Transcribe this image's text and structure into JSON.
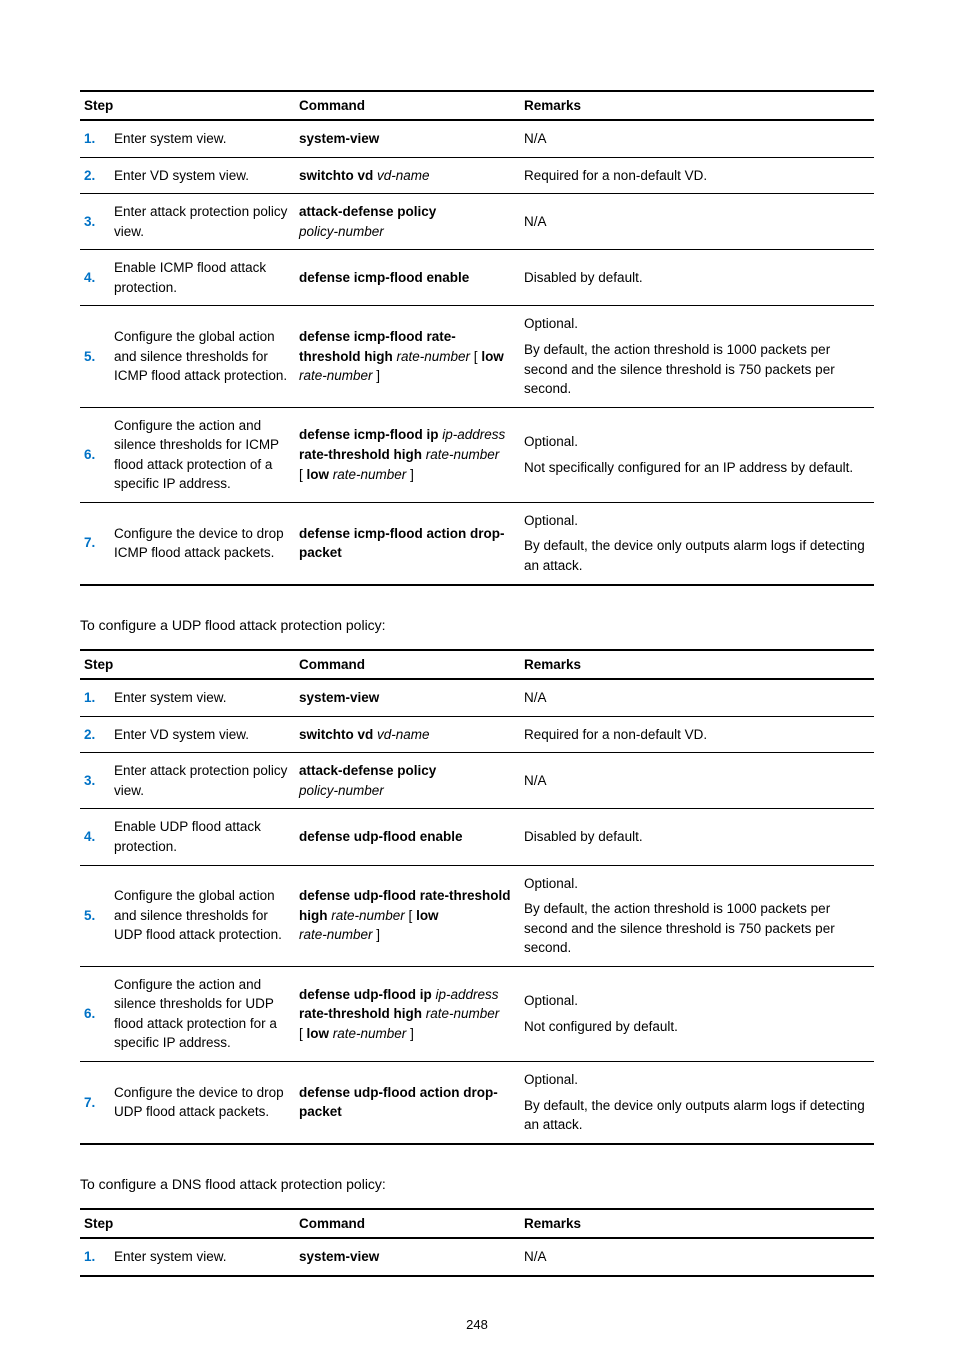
{
  "page_number": "248",
  "headers": {
    "step": "Step",
    "command": "Command",
    "remarks": "Remarks"
  },
  "intro_udp": "To configure a UDP flood attack protection policy:",
  "intro_dns": "To configure a DNS flood attack protection policy:",
  "icmp": [
    {
      "n": "1.",
      "step": "Enter system view.",
      "cmd": [
        {
          "b": "system-view"
        }
      ],
      "rem": "N/A"
    },
    {
      "n": "2.",
      "step": "Enter VD system view.",
      "cmd": [
        {
          "b": "switchto vd "
        },
        {
          "i": "vd-name"
        }
      ],
      "rem": "Required for a non-default VD."
    },
    {
      "n": "3.",
      "step": "Enter attack protection policy view.",
      "cmd": [
        {
          "b": "attack-defense policy"
        },
        {
          "br": true
        },
        {
          "i": "policy-number"
        }
      ],
      "rem": "N/A"
    },
    {
      "n": "4.",
      "step": "Enable ICMP flood attack protection.",
      "cmd": [
        {
          "b": "defense icmp-flood enable"
        }
      ],
      "rem": "Disabled by default."
    },
    {
      "n": "5.",
      "step": "Configure the global action and silence thresholds for ICMP flood attack protection.",
      "cmd": [
        {
          "b": "defense icmp-flood rate-threshold high "
        },
        {
          "i": "rate-number"
        },
        {
          "t": " [ "
        },
        {
          "b": "low"
        },
        {
          "br": true
        },
        {
          "i": "rate-number"
        },
        {
          "t": " ]"
        }
      ],
      "rem": "Optional.\nBy default, the action threshold is 1000 packets per second and the silence threshold is 750 packets per second."
    },
    {
      "n": "6.",
      "step": "Configure the action and silence thresholds for ICMP flood attack protection of a specific IP address.",
      "cmd": [
        {
          "b": "defense icmp-flood ip "
        },
        {
          "i": "ip-address"
        },
        {
          "br": true
        },
        {
          "b": "rate-threshold high "
        },
        {
          "i": "rate-number"
        },
        {
          "br": true
        },
        {
          "t": "[ "
        },
        {
          "b": "low "
        },
        {
          "i": "rate-number"
        },
        {
          "t": " ]"
        }
      ],
      "rem": "Optional.\nNot specifically configured for an IP address by default."
    },
    {
      "n": "7.",
      "step": "Configure the device to drop ICMP flood attack packets.",
      "cmd": [
        {
          "b": "defense icmp-flood action drop-packet"
        }
      ],
      "rem": "Optional.\nBy default, the device only outputs alarm logs if detecting an attack."
    }
  ],
  "udp": [
    {
      "n": "1.",
      "step": "Enter system view.",
      "cmd": [
        {
          "b": "system-view"
        }
      ],
      "rem": "N/A"
    },
    {
      "n": "2.",
      "step": "Enter VD system view.",
      "cmd": [
        {
          "b": "switchto vd "
        },
        {
          "i": "vd-name"
        }
      ],
      "rem": "Required for a non-default VD."
    },
    {
      "n": "3.",
      "step": "Enter attack protection policy view.",
      "cmd": [
        {
          "b": "attack-defense policy"
        },
        {
          "br": true
        },
        {
          "i": "policy-number"
        }
      ],
      "rem": "N/A"
    },
    {
      "n": "4.",
      "step": "Enable UDP flood attack protection.",
      "cmd": [
        {
          "b": "defense udp-flood enable"
        }
      ],
      "rem": "Disabled by default."
    },
    {
      "n": "5.",
      "step": "Configure the global action and silence thresholds for UDP flood attack protection.",
      "cmd": [
        {
          "b": "defense udp-flood rate-threshold high "
        },
        {
          "i": "rate-number"
        },
        {
          "t": " [ "
        },
        {
          "b": "low"
        },
        {
          "br": true
        },
        {
          "i": "rate-number"
        },
        {
          "t": " ]"
        }
      ],
      "rem": "Optional.\nBy default, the action threshold is 1000 packets per second and the silence threshold is 750 packets per second."
    },
    {
      "n": "6.",
      "step": "Configure the action and silence thresholds for UDP flood attack protection for a specific IP address.",
      "cmd": [
        {
          "b": "defense udp-flood ip "
        },
        {
          "i": "ip-address"
        },
        {
          "br": true
        },
        {
          "b": "rate-threshold high "
        },
        {
          "i": "rate-number"
        },
        {
          "br": true
        },
        {
          "t": "[ "
        },
        {
          "b": "low "
        },
        {
          "i": "rate-number"
        },
        {
          "t": " ]"
        }
      ],
      "rem": "Optional.\nNot configured by default."
    },
    {
      "n": "7.",
      "step": "Configure the device to drop UDP flood attack packets.",
      "cmd": [
        {
          "b": "defense udp-flood action drop-packet"
        }
      ],
      "rem": "Optional.\nBy default, the device only outputs alarm logs if detecting an attack."
    }
  ],
  "dns": [
    {
      "n": "1.",
      "step": "Enter system view.",
      "cmd": [
        {
          "b": "system-view"
        }
      ],
      "rem": "N/A"
    }
  ]
}
